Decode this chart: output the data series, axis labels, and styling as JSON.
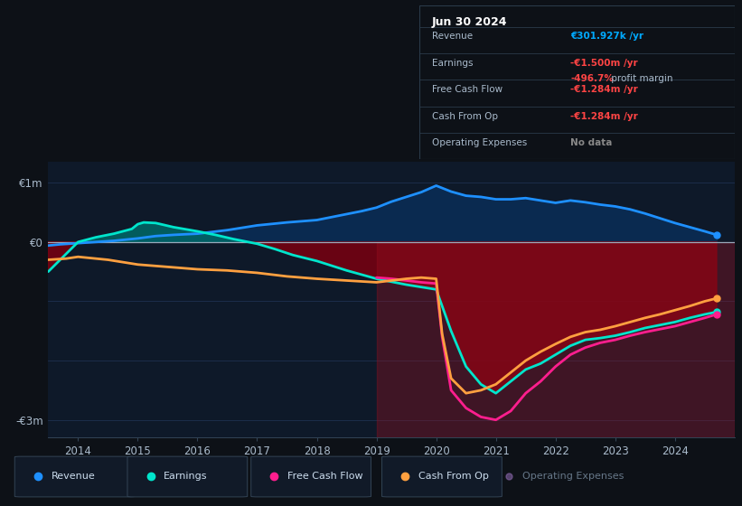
{
  "bg_color": "#0d1117",
  "plot_bg_color": "#0e1929",
  "zero_line_color": "#9aaabb",
  "ylim": [
    -3.3,
    1.35
  ],
  "xlim": [
    2013.5,
    2025.0
  ],
  "xticks": [
    2014,
    2015,
    2016,
    2017,
    2018,
    2019,
    2020,
    2021,
    2022,
    2023,
    2024
  ],
  "revenue": {
    "x": [
      2013.5,
      2013.7,
      2014.0,
      2014.3,
      2014.6,
      2015.0,
      2015.3,
      2015.6,
      2016.0,
      2016.5,
      2017.0,
      2017.5,
      2018.0,
      2018.25,
      2018.5,
      2018.75,
      2019.0,
      2019.25,
      2019.5,
      2019.75,
      2020.0,
      2020.25,
      2020.5,
      2020.75,
      2021.0,
      2021.25,
      2021.5,
      2021.75,
      2022.0,
      2022.25,
      2022.5,
      2022.75,
      2023.0,
      2023.25,
      2023.5,
      2023.75,
      2024.0,
      2024.25,
      2024.5,
      2024.7
    ],
    "y": [
      -0.06,
      -0.04,
      -0.02,
      0.0,
      0.02,
      0.06,
      0.1,
      0.12,
      0.14,
      0.2,
      0.28,
      0.33,
      0.37,
      0.42,
      0.47,
      0.52,
      0.58,
      0.68,
      0.76,
      0.84,
      0.95,
      0.85,
      0.78,
      0.76,
      0.72,
      0.72,
      0.74,
      0.7,
      0.66,
      0.7,
      0.67,
      0.63,
      0.6,
      0.55,
      0.48,
      0.4,
      0.32,
      0.25,
      0.18,
      0.12
    ],
    "color": "#1e90ff",
    "fill_color": "#0a2a50",
    "linewidth": 2.0
  },
  "earnings": {
    "x": [
      2013.5,
      2013.8,
      2014.0,
      2014.3,
      2014.6,
      2014.9,
      2015.0,
      2015.1,
      2015.3,
      2015.6,
      2016.0,
      2016.3,
      2016.6,
      2017.0,
      2017.3,
      2017.6,
      2018.0,
      2018.5,
      2019.0,
      2019.5,
      2020.0,
      2020.25,
      2020.5,
      2020.75,
      2021.0,
      2021.25,
      2021.5,
      2021.75,
      2022.0,
      2022.25,
      2022.5,
      2022.75,
      2023.0,
      2023.25,
      2023.5,
      2023.75,
      2024.0,
      2024.25,
      2024.5,
      2024.7
    ],
    "y": [
      -0.5,
      -0.2,
      0.0,
      0.08,
      0.14,
      0.22,
      0.3,
      0.33,
      0.32,
      0.25,
      0.18,
      0.12,
      0.05,
      -0.03,
      -0.12,
      -0.22,
      -0.32,
      -0.48,
      -0.62,
      -0.72,
      -0.8,
      -1.5,
      -2.1,
      -2.4,
      -2.55,
      -2.35,
      -2.15,
      -2.05,
      -1.9,
      -1.75,
      -1.65,
      -1.62,
      -1.58,
      -1.52,
      -1.45,
      -1.4,
      -1.35,
      -1.28,
      -1.22,
      -1.18
    ],
    "color": "#00e5cc",
    "linewidth": 2.0
  },
  "free_cash_flow": {
    "x": [
      2019.0,
      2019.25,
      2019.5,
      2019.75,
      2020.0,
      2020.1,
      2020.25,
      2020.5,
      2020.75,
      2021.0,
      2021.25,
      2021.5,
      2021.75,
      2022.0,
      2022.25,
      2022.5,
      2022.75,
      2023.0,
      2023.25,
      2023.5,
      2023.75,
      2024.0,
      2024.25,
      2024.5,
      2024.7
    ],
    "y": [
      -0.6,
      -0.62,
      -0.65,
      -0.68,
      -0.7,
      -1.6,
      -2.5,
      -2.8,
      -2.95,
      -3.0,
      -2.85,
      -2.55,
      -2.35,
      -2.1,
      -1.9,
      -1.78,
      -1.7,
      -1.65,
      -1.58,
      -1.52,
      -1.47,
      -1.42,
      -1.35,
      -1.28,
      -1.22
    ],
    "color": "#ff1e8e",
    "linewidth": 2.0
  },
  "cash_from_op": {
    "x": [
      2013.5,
      2013.8,
      2014.0,
      2014.5,
      2015.0,
      2015.5,
      2016.0,
      2016.5,
      2017.0,
      2017.5,
      2018.0,
      2018.5,
      2019.0,
      2019.25,
      2019.5,
      2019.75,
      2020.0,
      2020.1,
      2020.25,
      2020.5,
      2020.75,
      2021.0,
      2021.25,
      2021.5,
      2021.75,
      2022.0,
      2022.25,
      2022.5,
      2022.75,
      2023.0,
      2023.25,
      2023.5,
      2023.75,
      2024.0,
      2024.25,
      2024.5,
      2024.7
    ],
    "y": [
      -0.3,
      -0.28,
      -0.25,
      -0.3,
      -0.38,
      -0.42,
      -0.46,
      -0.48,
      -0.52,
      -0.58,
      -0.62,
      -0.65,
      -0.68,
      -0.65,
      -0.62,
      -0.6,
      -0.62,
      -1.55,
      -2.3,
      -2.55,
      -2.5,
      -2.4,
      -2.2,
      -2.0,
      -1.85,
      -1.72,
      -1.6,
      -1.52,
      -1.48,
      -1.42,
      -1.35,
      -1.28,
      -1.22,
      -1.15,
      -1.08,
      -1.0,
      -0.95
    ],
    "color": "#ffa040",
    "linewidth": 2.0
  },
  "legend": [
    {
      "label": "Revenue",
      "color": "#1e90ff"
    },
    {
      "label": "Earnings",
      "color": "#00e5cc"
    },
    {
      "label": "Free Cash Flow",
      "color": "#ff1e8e"
    },
    {
      "label": "Cash From Op",
      "color": "#ffa040"
    },
    {
      "label": "Operating Expenses",
      "color": "#8866aa"
    }
  ],
  "info_box": {
    "date": "Jun 30 2024",
    "rows": [
      {
        "label": "Revenue",
        "value": "€301.927k /yr",
        "value_color": "#00aaff",
        "sub_value": null,
        "sub_label": null
      },
      {
        "label": "Earnings",
        "value": "-€1.500m /yr",
        "value_color": "#ff4444",
        "sub_value": "-496.7%",
        "sub_label": " profit margin"
      },
      {
        "label": "Free Cash Flow",
        "value": "-€1.284m /yr",
        "value_color": "#ff4444",
        "sub_value": null,
        "sub_label": null
      },
      {
        "label": "Cash From Op",
        "value": "-€1.284m /yr",
        "value_color": "#ff4444",
        "sub_value": null,
        "sub_label": null
      },
      {
        "label": "Operating Expenses",
        "value": "No data",
        "value_color": "#888888",
        "sub_value": null,
        "sub_label": null
      }
    ]
  }
}
